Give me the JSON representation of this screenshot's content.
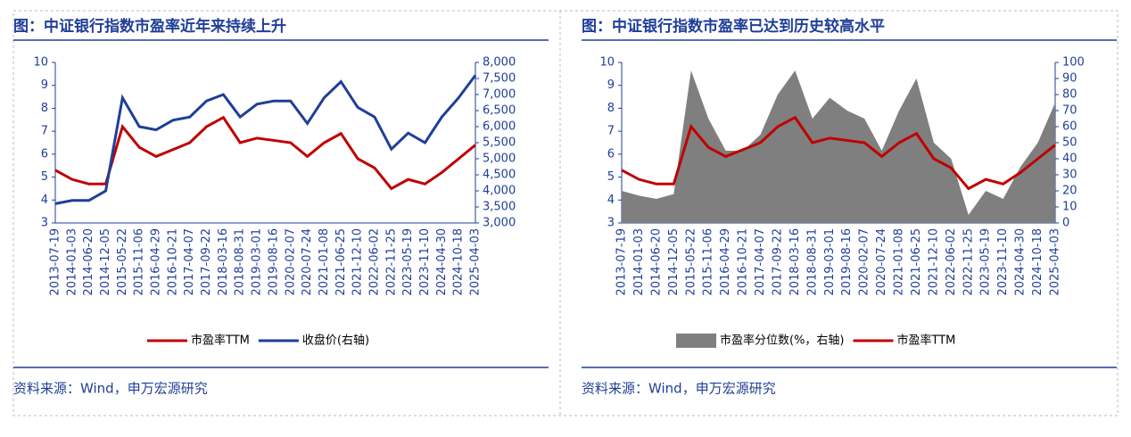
{
  "chart_data": [
    {
      "type": "line",
      "title": "图：中证银行指数市盈率近年来持续上升",
      "source": "资料来源：Wind，申万宏源研究",
      "categories": [
        "2013-07-19",
        "2014-01-03",
        "2014-06-20",
        "2014-12-05",
        "2015-05-22",
        "2015-11-06",
        "2016-04-29",
        "2016-10-21",
        "2017-04-07",
        "2017-09-22",
        "2018-03-16",
        "2018-08-31",
        "2019-03-01",
        "2019-08-16",
        "2020-02-07",
        "2020-07-24",
        "2021-01-08",
        "2021-06-25",
        "2021-12-10",
        "2022-06-02",
        "2022-11-25",
        "2023-05-19",
        "2023-11-10",
        "2024-04-30",
        "2024-10-18",
        "2025-04-03"
      ],
      "series": [
        {
          "name": "市盈率TTM",
          "color": "#c00000",
          "axis": "y",
          "values": [
            5.3,
            4.9,
            4.7,
            4.7,
            7.2,
            6.3,
            5.9,
            6.2,
            6.5,
            7.2,
            7.6,
            6.5,
            6.7,
            6.6,
            6.5,
            5.9,
            6.5,
            6.9,
            5.8,
            5.4,
            4.5,
            4.9,
            4.7,
            5.2,
            5.8,
            6.4
          ]
        },
        {
          "name": "收盘价(右轴)",
          "color": "#1f3e99",
          "axis": "y2",
          "values": [
            3600,
            3700,
            3700,
            4000,
            6900,
            6000,
            5900,
            6200,
            6300,
            6800,
            7000,
            6300,
            6700,
            6800,
            6800,
            6100,
            6900,
            7400,
            6600,
            6300,
            5300,
            5800,
            5500,
            6300,
            6900,
            7600
          ]
        }
      ],
      "ylim": [
        3,
        10
      ],
      "yticks": [
        3,
        4,
        5,
        6,
        7,
        8,
        9,
        10
      ],
      "y2lim": [
        3000,
        8000
      ],
      "y2ticks": [
        {
          "value": 3000,
          "label": "3,000"
        },
        {
          "value": 3500,
          "label": "3,500"
        },
        {
          "value": 4000,
          "label": "4,000"
        },
        {
          "value": 4500,
          "label": "4,500"
        },
        {
          "value": 5000,
          "label": "5,000"
        },
        {
          "value": 5500,
          "label": "5,500"
        },
        {
          "value": 6000,
          "label": "6,000"
        },
        {
          "value": 6500,
          "label": "6,500"
        },
        {
          "value": 7000,
          "label": "7,000"
        },
        {
          "value": 7500,
          "label": "7,500"
        },
        {
          "value": 8000,
          "label": "8,000"
        }
      ]
    },
    {
      "type": "line",
      "title": "图：中证银行指数市盈率已达到历史较高水平",
      "source": "资料来源：Wind，申万宏源研究",
      "categories": [
        "2013-07-19",
        "2014-01-03",
        "2014-06-20",
        "2014-12-05",
        "2015-05-22",
        "2015-11-06",
        "2016-04-29",
        "2016-10-21",
        "2017-04-07",
        "2017-09-22",
        "2018-03-16",
        "2018-08-31",
        "2019-03-01",
        "2019-08-16",
        "2020-02-07",
        "2020-07-24",
        "2021-01-08",
        "2021-06-25",
        "2021-12-10",
        "2022-06-02",
        "2022-11-25",
        "2023-05-19",
        "2023-11-10",
        "2024-04-30",
        "2024-10-18",
        "2025-04-03"
      ],
      "series": [
        {
          "name": "市盈率分位数(%，右轴)",
          "color": "#7f7f7f",
          "axis": "y2",
          "type": "area",
          "values": [
            20,
            17,
            15,
            18,
            95,
            65,
            45,
            45,
            55,
            80,
            95,
            65,
            78,
            70,
            65,
            45,
            70,
            90,
            50,
            40,
            5,
            20,
            15,
            35,
            50,
            75
          ]
        },
        {
          "name": "市盈率TTM",
          "color": "#c00000",
          "axis": "y",
          "values": [
            5.3,
            4.9,
            4.7,
            4.7,
            7.2,
            6.3,
            5.9,
            6.2,
            6.5,
            7.2,
            7.6,
            6.5,
            6.7,
            6.6,
            6.5,
            5.9,
            6.5,
            6.9,
            5.8,
            5.4,
            4.5,
            4.9,
            4.7,
            5.2,
            5.8,
            6.4
          ]
        }
      ],
      "ylim": [
        3,
        10
      ],
      "yticks": [
        3,
        4,
        5,
        6,
        7,
        8,
        9,
        10
      ],
      "y2lim": [
        0,
        100
      ],
      "y2ticks": [
        0,
        10,
        20,
        30,
        40,
        50,
        60,
        70,
        80,
        90,
        100
      ]
    }
  ]
}
